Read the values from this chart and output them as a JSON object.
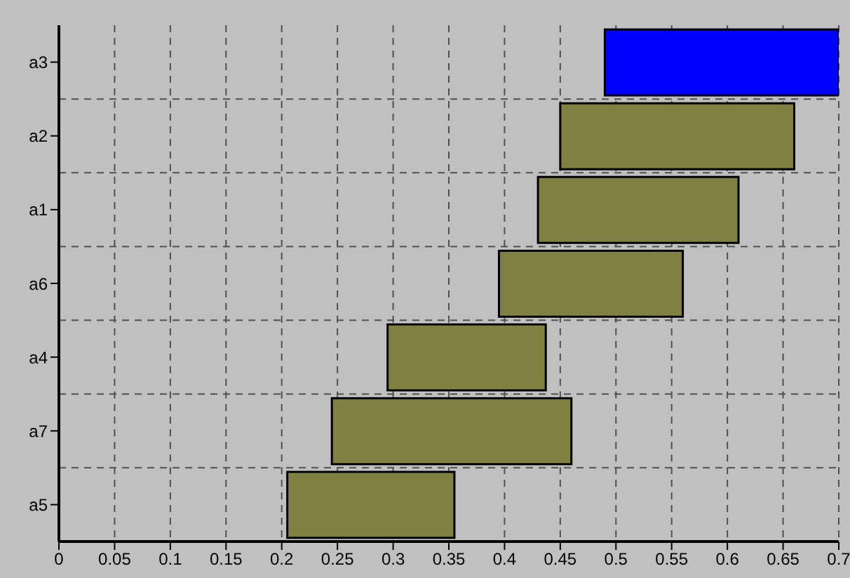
{
  "chart_data": {
    "type": "bar",
    "orientation": "horizontal",
    "categories": [
      "a3",
      "a2",
      "a1",
      "a6",
      "a4",
      "a7",
      "a5"
    ],
    "base": [
      0.49,
      0.45,
      0.43,
      0.395,
      0.295,
      0.245,
      0.205
    ],
    "values": [
      0.21,
      0.21,
      0.18,
      0.165,
      0.142,
      0.215,
      0.15
    ],
    "colors": [
      "#0000ff",
      "#808040",
      "#808040",
      "#808040",
      "#808040",
      "#808040",
      "#808040"
    ],
    "xlim": [
      0,
      0.7
    ],
    "xticks": [
      0,
      0.05,
      0.1,
      0.15,
      0.2,
      0.25,
      0.3,
      0.35,
      0.4,
      0.45,
      0.5,
      0.55,
      0.6,
      0.65,
      0.7
    ],
    "grid": true
  }
}
